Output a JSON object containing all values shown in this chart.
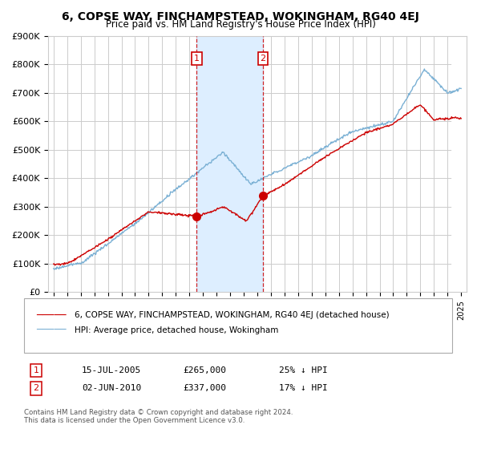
{
  "title": "6, COPSE WAY, FINCHAMPSTEAD, WOKINGHAM, RG40 4EJ",
  "subtitle": "Price paid vs. HM Land Registry's House Price Index (HPI)",
  "ylim": [
    0,
    900000
  ],
  "yticks": [
    0,
    100000,
    200000,
    300000,
    400000,
    500000,
    600000,
    700000,
    800000,
    900000
  ],
  "ytick_labels": [
    "£0",
    "£100K",
    "£200K",
    "£300K",
    "£400K",
    "£500K",
    "£600K",
    "£700K",
    "£800K",
    "£900K"
  ],
  "sale1": {
    "date_num": 2005.54,
    "price": 265000,
    "label": "1",
    "pct": "25% ↓ HPI",
    "date_str": "15-JUL-2005",
    "price_str": "£265,000"
  },
  "sale2": {
    "date_num": 2010.42,
    "price": 337000,
    "label": "2",
    "pct": "17% ↓ HPI",
    "date_str": "02-JUN-2010",
    "price_str": "£337,000"
  },
  "red_line_color": "#cc0000",
  "blue_line_color": "#7ab0d4",
  "shade_color": "#ddeeff",
  "marker_color": "#cc0000",
  "legend_label_red": "6, COPSE WAY, FINCHAMPSTEAD, WOKINGHAM, RG40 4EJ (detached house)",
  "legend_label_blue": "HPI: Average price, detached house, Wokingham",
  "footer": "Contains HM Land Registry data © Crown copyright and database right 2024.\nThis data is licensed under the Open Government Licence v3.0.",
  "background_color": "#ffffff",
  "grid_color": "#cccccc",
  "hatch_color": "#bbbbcc",
  "xlim_left": 1994.6,
  "xlim_right": 2025.4
}
